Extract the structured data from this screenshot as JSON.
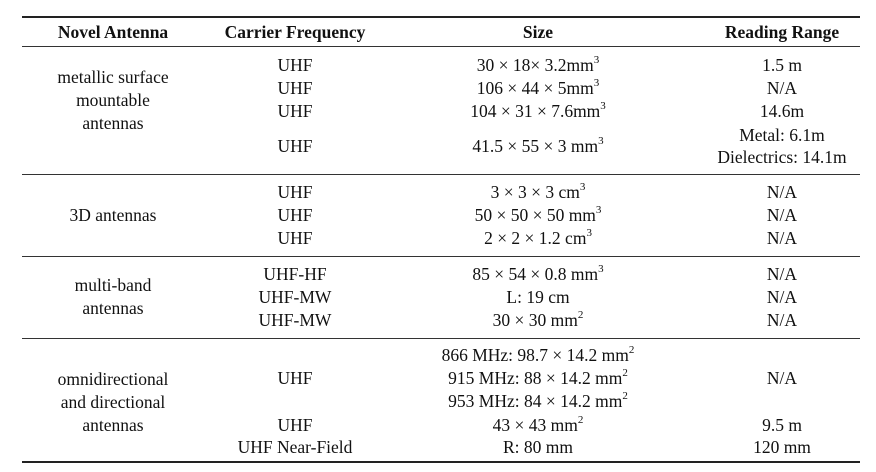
{
  "table": {
    "headers": [
      "Novel Antenna",
      "Carrier Frequency",
      "Size",
      "Reading Range"
    ],
    "groups": [
      {
        "antenna": [
          "metallic surface",
          "mountable",
          "antennas"
        ],
        "rows": [
          {
            "freq": "UHF",
            "size": [
              "30 × 18× 3.2mm",
              "3"
            ],
            "range": [
              "1.5 m"
            ]
          },
          {
            "freq": "UHF",
            "size": [
              "106 × 44 × 5mm",
              "3"
            ],
            "range": [
              "N/A"
            ]
          },
          {
            "freq": "UHF",
            "size": [
              "104 × 31 × 7.6mm",
              "3"
            ],
            "range": [
              "14.6m"
            ]
          },
          {
            "freq": "UHF",
            "size": [
              "41.5 × 55 × 3 mm",
              "3"
            ],
            "range": [
              "Metal: 6.1m",
              "Dielectrics: 14.1m"
            ]
          }
        ]
      },
      {
        "antenna": [
          "3D antennas"
        ],
        "rows": [
          {
            "freq": "UHF",
            "size": [
              "3 × 3 × 3 cm",
              "3"
            ],
            "range": [
              "N/A"
            ]
          },
          {
            "freq": "UHF",
            "size": [
              "50 × 50 × 50 mm",
              "3"
            ],
            "range": [
              "N/A"
            ]
          },
          {
            "freq": "UHF",
            "size": [
              "2 × 2 × 1.2 cm",
              "3"
            ],
            "range": [
              "N/A"
            ]
          }
        ]
      },
      {
        "antenna": [
          "multi-band",
          "antennas"
        ],
        "rows": [
          {
            "freq": "UHF-HF",
            "size": [
              "85 × 54 × 0.8 mm",
              "3"
            ],
            "range": [
              "N/A"
            ]
          },
          {
            "freq": "UHF-MW",
            "size": [
              "L: 19 cm",
              ""
            ],
            "range": [
              "N/A"
            ]
          },
          {
            "freq": "UHF-MW",
            "size": [
              "30 × 30 mm",
              "2"
            ],
            "range": [
              "N/A"
            ]
          }
        ]
      },
      {
        "antenna": [
          "omnidirectional",
          "and directional",
          "antennas"
        ],
        "rows": [
          {
            "freq": "UHF",
            "size_lines": [
              [
                "866 MHz: 98.7 × 14.2 mm",
                "2"
              ],
              [
                "915 MHz: 88 × 14.2 mm",
                "2"
              ],
              [
                "953 MHz: 84 × 14.2 mm",
                "2"
              ]
            ],
            "range": [
              "N/A"
            ]
          },
          {
            "freq": "UHF",
            "size": [
              "43 × 43 mm",
              "2"
            ],
            "range": [
              "9.5 m"
            ]
          },
          {
            "freq": "UHF Near-Field",
            "size": [
              "R: 80 mm",
              ""
            ],
            "range": [
              "120 mm"
            ]
          }
        ]
      }
    ]
  }
}
